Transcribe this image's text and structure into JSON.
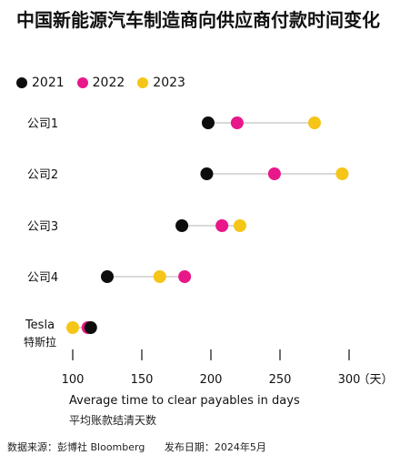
{
  "title": "中国新能源汽车制造商向供应商付款时间变化",
  "colors": {
    "2021": "#0d0d0d",
    "2022": "#e8178a",
    "2023": "#f5c518",
    "line": "#d9d9d9"
  },
  "legend": [
    {
      "label": "2021",
      "color": "#0d0d0d"
    },
    {
      "label": "2022",
      "color": "#e8178a"
    },
    {
      "label": "2023",
      "color": "#f5c518"
    }
  ],
  "chart_data": {
    "type": "scatter",
    "title": "中国新能源汽车制造商向供应商付款时间变化",
    "xlabel": "Average time to clear payables in days",
    "xlabel_zh": "平均账款结清天数",
    "x_unit": "（天）",
    "xlim": [
      100,
      300
    ],
    "xticks": [
      100,
      150,
      200,
      250,
      300
    ],
    "legend_position": "top-left",
    "grid": false,
    "categories": [
      {
        "label": "公司1",
        "label2": ""
      },
      {
        "label": "公司2",
        "label2": ""
      },
      {
        "label": "公司3",
        "label2": ""
      },
      {
        "label": "公司4",
        "label2": ""
      },
      {
        "label": "Tesla",
        "label2": "特斯拉"
      }
    ],
    "series": [
      {
        "name": "2021",
        "values": [
          198,
          197,
          179,
          125,
          113
        ]
      },
      {
        "name": "2022",
        "values": [
          219,
          246,
          208,
          181,
          111
        ]
      },
      {
        "name": "2023",
        "values": [
          275,
          295,
          221,
          163,
          100
        ]
      }
    ]
  },
  "footer": {
    "source": "数据来源：彭博社 Bloomberg",
    "date": "发布日期：2024年5月"
  }
}
